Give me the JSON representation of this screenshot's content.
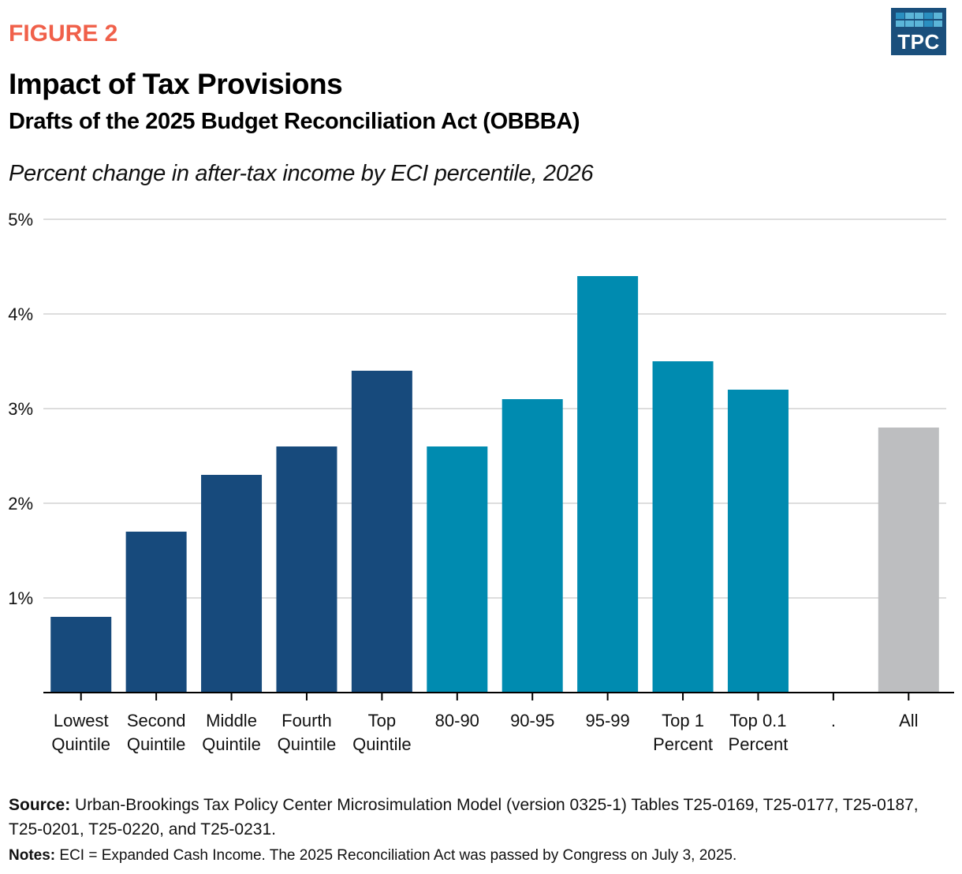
{
  "header": {
    "figure_label": "FIGURE 2",
    "logo_text": "TPC",
    "title": "Impact of Tax Provisions",
    "subtitle": "Drafts of the 2025 Budget Reconciliation Act (OBBBA)",
    "units_label": "Percent change in after-tax income by ECI percentile, 2026"
  },
  "colors": {
    "figure_label": "#f0604a",
    "quintile_bar": "#174a7c",
    "percentile_bar": "#008bb0",
    "all_bar": "#bdbec0",
    "gridline": "#dddddd",
    "axis": "#000000",
    "logo_bg": "#1a4f7c"
  },
  "chart_data": {
    "type": "bar",
    "title": "Impact of Tax Provisions",
    "subtitle": "Drafts of the 2025 Budget Reconciliation Act (OBBBA)",
    "ylabel": "Percent change in after-tax income by ECI percentile, 2026",
    "xlabel": "",
    "categories": [
      [
        "Lowest",
        "Quintile"
      ],
      [
        "Second",
        "Quintile"
      ],
      [
        "Middle",
        "Quintile"
      ],
      [
        "Fourth",
        "Quintile"
      ],
      [
        "Top",
        "Quintile"
      ],
      [
        "80-90"
      ],
      [
        "90-95"
      ],
      [
        "95-99"
      ],
      [
        "Top 1",
        "Percent"
      ],
      [
        "Top 0.1",
        "Percent"
      ],
      [
        "."
      ],
      [
        "All"
      ]
    ],
    "values": [
      0.8,
      1.7,
      2.3,
      2.6,
      3.4,
      2.6,
      3.1,
      4.4,
      3.5,
      3.2,
      null,
      2.8
    ],
    "groups": [
      "quintile",
      "quintile",
      "quintile",
      "quintile",
      "quintile",
      "percentile",
      "percentile",
      "percentile",
      "percentile",
      "percentile",
      "none",
      "all"
    ],
    "ylim": [
      0,
      5
    ],
    "yticks": [
      1,
      2,
      3,
      4,
      5
    ],
    "ytick_labels": [
      "1%",
      "2%",
      "3%",
      "4%",
      "5%"
    ],
    "grid": true,
    "legend": "none"
  },
  "footer": {
    "source_label": "Source:",
    "source_text": " Urban-Brookings Tax Policy Center Microsimulation Model (version 0325-1) Tables T25-0169, T25-0177, T25-0187, T25-0201, T25-0220, and T25-0231.",
    "notes_label": "Notes:",
    "notes_text": " ECI = Expanded Cash Income. The 2025 Reconciliation Act was passed by Congress on July 3, 2025."
  }
}
